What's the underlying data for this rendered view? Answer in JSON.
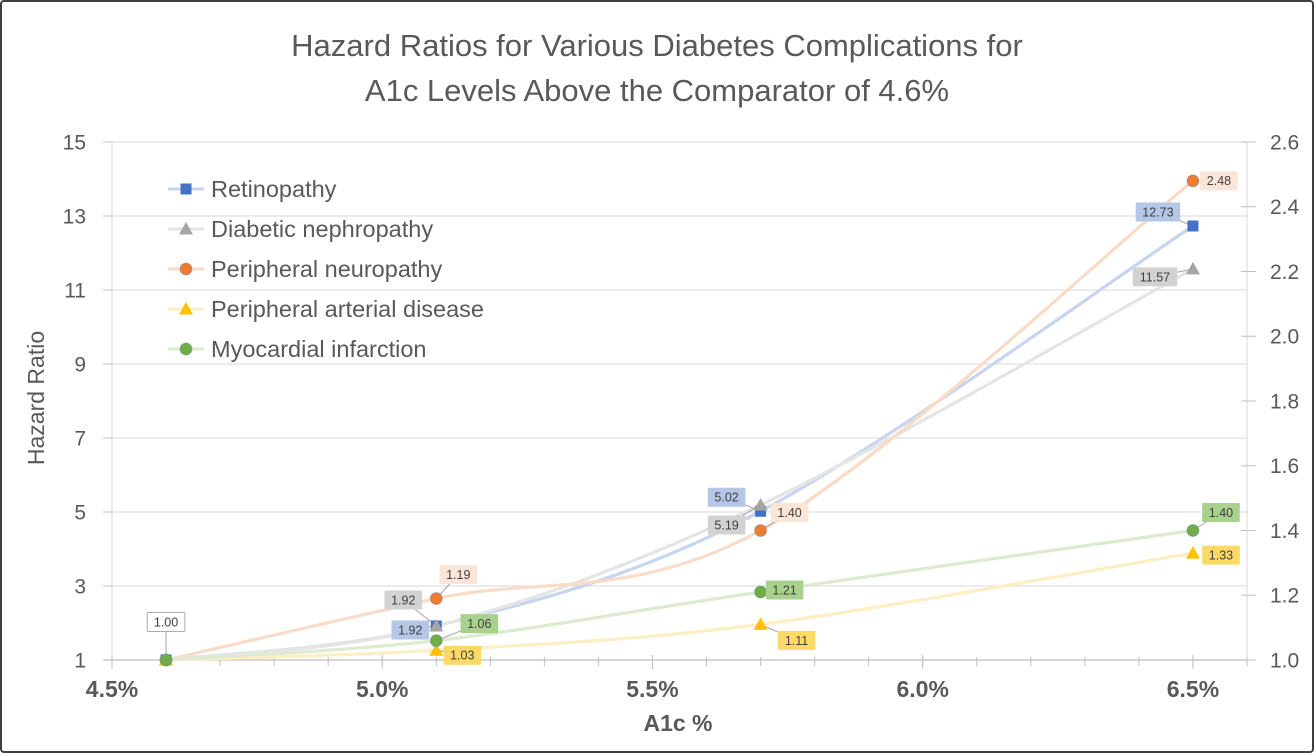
{
  "chart_data": {
    "type": "line",
    "title": "Hazard Ratios for Various Diabetes Complications for A1c Levels Above the Comparator of 4.6%",
    "title_lines": [
      "Hazard Ratios for Various Diabetes Complications for",
      "A1c Levels Above the Comparator of 4.6%"
    ],
    "xlabel": "A1c %",
    "ylabel_left": "Hazard Ratio",
    "x": [
      4.6,
      5.1,
      5.7,
      6.5
    ],
    "xlim": [
      4.5,
      6.6
    ],
    "x_major_ticks": [
      {
        "value": 4.5,
        "label": "4.5%"
      },
      {
        "value": 5.0,
        "label": "5.0%"
      },
      {
        "value": 5.5,
        "label": "5.5%"
      },
      {
        "value": 6.0,
        "label": "6.0%"
      },
      {
        "value": 6.5,
        "label": "6.5%"
      }
    ],
    "x_minor_unit": 0.1,
    "left_axis": {
      "lim": [
        1,
        15
      ],
      "ticks": [
        1,
        3,
        5,
        7,
        9,
        11,
        13,
        15
      ]
    },
    "right_axis": {
      "lim": [
        1.0,
        2.6
      ],
      "ticks": [
        "1.0",
        "1.2",
        "1.4",
        "1.6",
        "1.8",
        "2.0",
        "2.2",
        "2.4",
        "2.6"
      ]
    },
    "grid": "horizontal",
    "legend_position": "top-left-inside",
    "series": [
      {
        "name": "Retinopathy",
        "axis": "left",
        "marker": "square",
        "color": "#4472C4",
        "line_color": "#c7d6ee",
        "label_bg": "#B4C7E7",
        "values": [
          1.0,
          1.92,
          5.02,
          12.73
        ],
        "labels": [
          "1.00",
          "1.92",
          "5.02",
          "12.73"
        ]
      },
      {
        "name": "Diabetic nephropathy",
        "axis": "left",
        "marker": "triangle",
        "color": "#A5A5A5",
        "line_color": "#e5e5e5",
        "label_bg": "#D2D2D2",
        "values": [
          1.0,
          1.92,
          5.19,
          11.57
        ],
        "labels": [
          "",
          "1.92",
          "5.19",
          "11.57"
        ]
      },
      {
        "name": "Peripheral neuropathy",
        "axis": "right",
        "marker": "circle",
        "color": "#ED7D31",
        "line_color": "#f9dcc8",
        "label_bg": "#FBE5D6",
        "values": [
          1.0,
          1.19,
          1.4,
          2.48
        ],
        "labels": [
          "",
          "1.19",
          "1.40",
          "2.48"
        ]
      },
      {
        "name": "Peripheral arterial disease",
        "axis": "right",
        "marker": "triangle",
        "color": "#FFC000",
        "line_color": "#fdeec4",
        "label_bg": "#FFD966",
        "values": [
          1.0,
          1.03,
          1.11,
          1.33
        ],
        "labels": [
          "",
          "1.03",
          "1.11",
          "1.33"
        ]
      },
      {
        "name": "Myocardial infarction",
        "axis": "right",
        "marker": "circle",
        "color": "#70AD47",
        "line_color": "#ddebd0",
        "label_bg": "#A9D18E",
        "values": [
          1.0,
          1.06,
          1.21,
          1.4
        ],
        "labels": [
          "",
          "1.06",
          "1.21",
          "1.40"
        ]
      }
    ],
    "start_label": {
      "text": "1.00",
      "bg": "#FFFFFF",
      "border": "#ABABAB"
    }
  },
  "colors": {
    "grid": "#D9D9D9",
    "axis_line": "#BFBFBF",
    "tick": "#BFBFBF",
    "tick_text": "#595959",
    "data_label_text": "#3F3F3F",
    "leader_line": "#A6A6A6",
    "frame_border": "#3F3F3F"
  }
}
